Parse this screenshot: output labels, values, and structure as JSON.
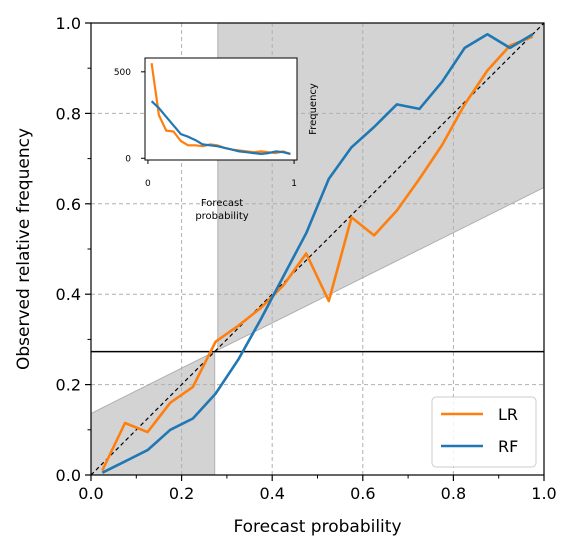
{
  "chart_data": [
    {
      "type": "line",
      "xlabel": "Forecast probability",
      "ylabel": "Observed relative frequency",
      "xlim": [
        0,
        1
      ],
      "ylim": [
        0,
        1
      ],
      "xticks": [
        0.0,
        0.2,
        0.4,
        0.6,
        0.8,
        1.0
      ],
      "yticks": [
        0.0,
        0.2,
        0.4,
        0.6,
        0.8,
        1.0
      ],
      "xtick_labels": [
        "0.0",
        "0.2",
        "0.4",
        "0.6",
        "0.8",
        "1.0"
      ],
      "ytick_labels": [
        "0.0",
        "0.2",
        "0.4",
        "0.6",
        "0.8",
        "1.0"
      ],
      "grid": true,
      "legend": "bottom-right",
      "diagonal": true,
      "climatology": 0.273,
      "skill_region": {
        "color": "#d3d3d3",
        "lower": [
          [
            0.0,
            0.0
          ],
          [
            0.273,
            0.0
          ],
          [
            0.273,
            0.273
          ],
          [
            1.0,
            0.636
          ]
        ],
        "upper": [
          [
            0.0,
            0.136
          ],
          [
            0.273,
            0.273
          ],
          [
            0.28,
            0.28
          ],
          [
            0.28,
            1.0
          ],
          [
            1.0,
            1.0
          ]
        ]
      },
      "series": [
        {
          "name": "LR",
          "color": "#ff7f0e",
          "points": [
            [
              0.025,
              0.01
            ],
            [
              0.075,
              0.115
            ],
            [
              0.125,
              0.095
            ],
            [
              0.175,
              0.16
            ],
            [
              0.225,
              0.195
            ],
            [
              0.275,
              0.295
            ],
            [
              0.325,
              0.33
            ],
            [
              0.375,
              0.37
            ],
            [
              0.425,
              0.42
            ],
            [
              0.475,
              0.49
            ],
            [
              0.525,
              0.385
            ],
            [
              0.575,
              0.57
            ],
            [
              0.625,
              0.53
            ],
            [
              0.675,
              0.585
            ],
            [
              0.725,
              0.655
            ],
            [
              0.775,
              0.73
            ],
            [
              0.825,
              0.82
            ],
            [
              0.875,
              0.895
            ],
            [
              0.925,
              0.95
            ],
            [
              0.975,
              0.97
            ]
          ]
        },
        {
          "name": "RF",
          "color": "#1f77b4",
          "points": [
            [
              0.025,
              0.005
            ],
            [
              0.075,
              0.03
            ],
            [
              0.125,
              0.055
            ],
            [
              0.175,
              0.1
            ],
            [
              0.225,
              0.125
            ],
            [
              0.275,
              0.18
            ],
            [
              0.325,
              0.255
            ],
            [
              0.375,
              0.345
            ],
            [
              0.425,
              0.44
            ],
            [
              0.475,
              0.535
            ],
            [
              0.525,
              0.655
            ],
            [
              0.575,
              0.725
            ],
            [
              0.625,
              0.77
            ],
            [
              0.675,
              0.82
            ],
            [
              0.725,
              0.81
            ],
            [
              0.775,
              0.87
            ],
            [
              0.825,
              0.945
            ],
            [
              0.875,
              0.975
            ],
            [
              0.925,
              0.945
            ],
            [
              0.975,
              0.975
            ]
          ]
        }
      ]
    },
    {
      "type": "line",
      "xlabel": "Forecast\nprobability",
      "ylabel": "Frequency",
      "xlim": [
        -0.02,
        1.02
      ],
      "ylim": [
        -10,
        580
      ],
      "xticks": [
        0,
        1
      ],
      "yticks": [
        0,
        500
      ],
      "xtick_labels": [
        "0",
        "1"
      ],
      "ytick_labels": [
        "0",
        "500"
      ],
      "grid": false,
      "series": [
        {
          "name": "LR",
          "color": "#ff7f0e",
          "points": [
            [
              0.025,
              550
            ],
            [
              0.075,
              250
            ],
            [
              0.125,
              160
            ],
            [
              0.175,
              155
            ],
            [
              0.225,
              100
            ],
            [
              0.275,
              75
            ],
            [
              0.325,
              75
            ],
            [
              0.375,
              70
            ],
            [
              0.425,
              80
            ],
            [
              0.475,
              75
            ],
            [
              0.525,
              60
            ],
            [
              0.575,
              50
            ],
            [
              0.625,
              45
            ],
            [
              0.675,
              40
            ],
            [
              0.725,
              35
            ],
            [
              0.775,
              40
            ],
            [
              0.825,
              35
            ],
            [
              0.875,
              30
            ],
            [
              0.925,
              40
            ],
            [
              0.975,
              25
            ]
          ]
        },
        {
          "name": "RF",
          "color": "#1f77b4",
          "points": [
            [
              0.025,
              330
            ],
            [
              0.075,
              290
            ],
            [
              0.125,
              240
            ],
            [
              0.175,
              190
            ],
            [
              0.225,
              140
            ],
            [
              0.275,
              125
            ],
            [
              0.325,
              105
            ],
            [
              0.375,
              80
            ],
            [
              0.425,
              75
            ],
            [
              0.475,
              70
            ],
            [
              0.525,
              60
            ],
            [
              0.575,
              50
            ],
            [
              0.625,
              40
            ],
            [
              0.675,
              35
            ],
            [
              0.725,
              30
            ],
            [
              0.775,
              25
            ],
            [
              0.825,
              30
            ],
            [
              0.875,
              40
            ],
            [
              0.925,
              35
            ],
            [
              0.975,
              25
            ]
          ]
        }
      ]
    }
  ]
}
